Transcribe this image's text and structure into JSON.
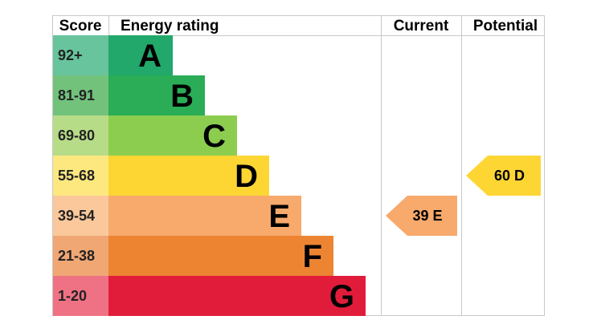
{
  "headers": {
    "score": "Score",
    "rating": "Energy rating",
    "current": "Current",
    "potential": "Potential"
  },
  "chart_data": {
    "type": "bar",
    "bands": [
      {
        "score": "92+",
        "letter": "A",
        "score_bg": "#67c49d",
        "bar": "#21a86a",
        "rel": 1
      },
      {
        "score": "81-91",
        "letter": "B",
        "score_bg": "#72c27c",
        "bar": "#2aad56",
        "rel": 2
      },
      {
        "score": "69-80",
        "letter": "C",
        "score_bg": "#b7dc88",
        "bar": "#8ccd4f",
        "rel": 3
      },
      {
        "score": "55-68",
        "letter": "D",
        "score_bg": "#fde880",
        "bar": "#fdd634",
        "rel": 4
      },
      {
        "score": "39-54",
        "letter": "E",
        "score_bg": "#fbc89b",
        "bar": "#f8a96c",
        "rel": 5
      },
      {
        "score": "21-38",
        "letter": "F",
        "score_bg": "#f0a774",
        "bar": "#ec8432",
        "rel": 6
      },
      {
        "score": "1-20",
        "letter": "G",
        "score_bg": "#ef7284",
        "bar": "#e11c3a",
        "rel": 7
      }
    ],
    "current": {
      "value": 39,
      "letter": "E",
      "label": "39 E",
      "color": "#f8a96c"
    },
    "potential": {
      "value": 60,
      "letter": "D",
      "label": "60 D",
      "color": "#fdd634"
    }
  }
}
